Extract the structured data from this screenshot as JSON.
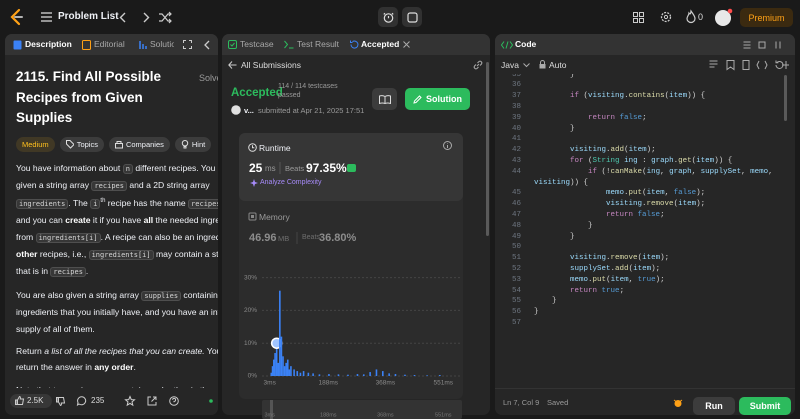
{
  "header": {
    "title": "Problem List",
    "coins": "0",
    "premium": "Premium"
  },
  "description": {
    "tabs": [
      "Description",
      "Editorial",
      "Solutions"
    ],
    "title": "2115. Find All Possible Recipes from Given Supplies",
    "status": "Solved",
    "tags": [
      "Medium",
      "Topics",
      "Companies",
      "Hint"
    ],
    "paragraphs": [
      [
        "You have information about ",
        {
          "code": "n"
        },
        " different recipes. You are given a string array ",
        {
          "code": "recipes"
        },
        " and a 2D string array ",
        {
          "code": "ingredients"
        },
        ". The ",
        {
          "code": "i"
        },
        {
          "sup": "th"
        },
        " recipe has the name ",
        {
          "code": "recipes[i]"
        },
        ", and you can ",
        {
          "b": "create"
        },
        " it if you have ",
        {
          "b": "all"
        },
        " the needed ingredients from ",
        {
          "code": "ingredients[i]"
        },
        ". A recipe can also be an ingredient for ",
        {
          "b": "other"
        },
        " recipes, i.e., ",
        {
          "code": "ingredients[i]"
        },
        " may contain a string that is in ",
        {
          "code": "recipes"
        },
        "."
      ],
      [
        "You are also given a string array ",
        {
          "code": "supplies"
        },
        " containing all the ingredients that you initially have, and you have an infinite supply of all of them."
      ],
      [
        "Return ",
        {
          "i": "a list of all the recipes that you can create."
        },
        " You may return the answer in ",
        {
          "b": "any order"
        },
        "."
      ],
      [
        "Note that two recipes may contain each other in the ingredients."
      ]
    ],
    "likes": "2.5K",
    "comments": "235"
  },
  "submission": {
    "tabs": [
      "Testcase",
      "Test Result",
      "Accepted"
    ],
    "back": "All Submissions",
    "status": "Accepted",
    "testcases": "114 / 114 testcases",
    "passed": "passed",
    "user": "v...",
    "submitted": "submitted at Apr 21, 2025 17:51",
    "solution_button": "Solution",
    "runtime_label": "Runtime",
    "runtime_value": "25",
    "runtime_unit": "ms",
    "runtime_beats_label": "Beats",
    "runtime_beats": "97.35%",
    "analyze": "Analyze Complexity",
    "memory_label": "Memory",
    "memory_value": "46.96",
    "memory_unit": "MB",
    "memory_beats_label": "Beats",
    "memory_beats": "36.80%"
  },
  "chart_data": {
    "type": "bar",
    "x": [
      8,
      12,
      16,
      20,
      25,
      30,
      35,
      40,
      45,
      50,
      55,
      60,
      65,
      70,
      80,
      90,
      100,
      110,
      125,
      140,
      160,
      190,
      220,
      250,
      280,
      300,
      320,
      340,
      360,
      380,
      400,
      430,
      460,
      500,
      540
    ],
    "values": [
      1,
      3,
      5,
      7,
      10,
      4,
      26,
      12,
      6,
      3,
      4,
      5,
      2,
      3,
      2,
      1.5,
      1,
      1.5,
      1,
      0.8,
      0.5,
      0.6,
      0.5,
      0.4,
      0.6,
      0.5,
      1.2,
      2,
      1.5,
      0.8,
      0.6,
      0.4,
      0.3,
      0.2,
      0.3
    ],
    "xlim": [
      -15,
      610
    ],
    "ylim": [
      0,
      32
    ],
    "xticks": [
      {
        "value": 3,
        "label": "3ms"
      },
      {
        "value": 188,
        "label": "188ms"
      },
      {
        "value": 368,
        "label": "368ms"
      },
      {
        "value": 551,
        "label": "551ms"
      }
    ],
    "yticks": [
      {
        "value": 0,
        "label": "0%"
      },
      {
        "value": 10,
        "label": "10%"
      },
      {
        "value": 20,
        "label": "20%"
      },
      {
        "value": 30,
        "label": "30%"
      }
    ],
    "grid": true,
    "color": "#3b82f6",
    "highlight_index": 4
  },
  "editor": {
    "title": "Code",
    "language": "Java",
    "mode": "Auto",
    "lines": [
      {
        "number": 35,
        "text": "        }"
      },
      {
        "number": 36
      },
      {
        "number": 37,
        "text": "        if (visiting.contains(item)) {"
      },
      {
        "number": 38
      },
      {
        "number": 39,
        "text": "            return false;"
      },
      {
        "number": 40,
        "text": "        }"
      },
      {
        "number": 41
      },
      {
        "number": 42,
        "text": "        visiting.add(item);"
      },
      {
        "number": 43,
        "text": "        for (String ing : graph.get(item)) {"
      },
      {
        "number": 44,
        "text": "            if (!canMake(ing, graph, supplySet, memo,"
      },
      {
        "text": "visiting)) {"
      },
      {
        "number": 45,
        "text": "                memo.put(item, false);"
      },
      {
        "number": 46,
        "text": "                visiting.remove(item);"
      },
      {
        "number": 47,
        "text": "                return false;"
      },
      {
        "number": 48,
        "text": "            }"
      },
      {
        "number": 49,
        "text": "        }"
      },
      {
        "number": 50
      },
      {
        "number": 51,
        "text": "        visiting.remove(item);"
      },
      {
        "number": 52,
        "text": "        supplySet.add(item);"
      },
      {
        "number": 53,
        "text": "        memo.put(item, true);"
      },
      {
        "number": 54,
        "text": "        return true;"
      },
      {
        "number": 55,
        "text": "    }"
      },
      {
        "number": 56,
        "text": "}"
      },
      {
        "number": 57
      }
    ],
    "cursor": "Ln 7, Col 9",
    "save_status": "Saved",
    "run": "Run",
    "submit": "Submit"
  }
}
